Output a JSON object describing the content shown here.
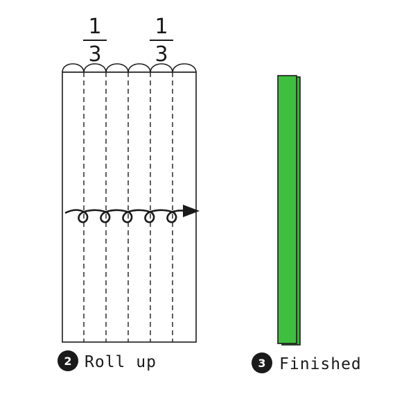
{
  "step_two": {
    "number": "2",
    "caption": "Roll up",
    "fractions": [
      {
        "numerator": "1",
        "denominator": "3"
      },
      {
        "numerator": "1",
        "denominator": "3"
      }
    ]
  },
  "step_three": {
    "number": "3",
    "caption": "Finished"
  },
  "colors": {
    "ink": "#1a1a1a",
    "strip_fill": "#3fbf3f",
    "strip_back": "#37b337",
    "badge": "#1a1a1a"
  }
}
